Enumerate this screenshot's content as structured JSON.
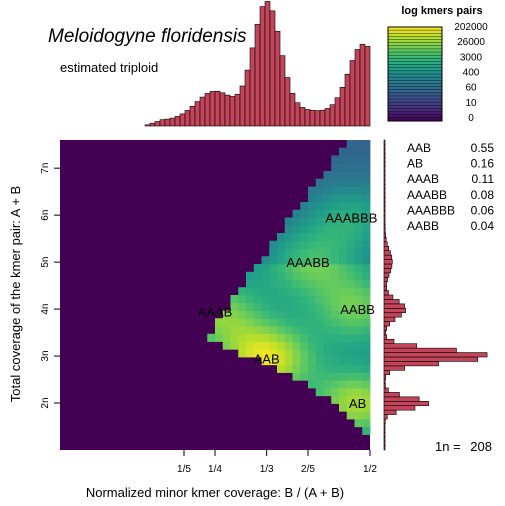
{
  "chart_data": {
    "type": "heatmap",
    "title": "Meloidogyne floridensis",
    "subtitle": "estimated triploid",
    "xlabel": "Normalized minor kmer coverage: B / (A + B)",
    "ylabel": "Total coverage of the kmer pair: A + B",
    "x_ticks": [
      "1/5",
      "1/4",
      "1/3",
      "2/5",
      "1/2"
    ],
    "x_tick_values": [
      0.2,
      0.25,
      0.3333,
      0.4,
      0.5
    ],
    "y_ticks": [
      "2n",
      "3n",
      "4n",
      "5n",
      "6n",
      "7n"
    ],
    "y_tick_values": [
      2,
      3,
      4,
      5,
      6,
      7
    ],
    "xlim": [
      0,
      0.5
    ],
    "ylim": [
      1,
      7.6
    ],
    "n_label": "1n =",
    "n_value": "208",
    "colorbar": {
      "title": "log kmers pairs",
      "labels": [
        "202000",
        "26000",
        "3000",
        "400",
        "60",
        "10",
        "0"
      ],
      "colors": [
        "#fde725",
        "#b5de2b",
        "#6ece58",
        "#35b779",
        "#1f9e89",
        "#26828e",
        "#31688e",
        "#3e4989",
        "#482878",
        "#440154"
      ]
    },
    "peaks": [
      {
        "label": "AB",
        "x": 0.48,
        "y": 2.0,
        "intensity": 0.85
      },
      {
        "label": "AAB",
        "x": 0.3333,
        "y": 2.95,
        "intensity": 1.0
      },
      {
        "label": "AAAB",
        "x": 0.25,
        "y": 3.95,
        "intensity": 0.7
      },
      {
        "label": "AABB",
        "x": 0.48,
        "y": 4.0,
        "intensity": 0.65
      },
      {
        "label": "AAABB",
        "x": 0.4,
        "y": 5.0,
        "intensity": 0.6
      },
      {
        "label": "AAABBB",
        "x": 0.47,
        "y": 5.95,
        "intensity": 0.5
      }
    ],
    "proportions": [
      {
        "name": "AAB",
        "value": "0.55"
      },
      {
        "name": "AB",
        "value": "0.16"
      },
      {
        "name": "AAAB",
        "value": "0.11"
      },
      {
        "name": "AAABB",
        "value": "0.08"
      },
      {
        "name": "AAABBB",
        "value": "0.06"
      },
      {
        "name": "AABB",
        "value": "0.04"
      }
    ]
  }
}
